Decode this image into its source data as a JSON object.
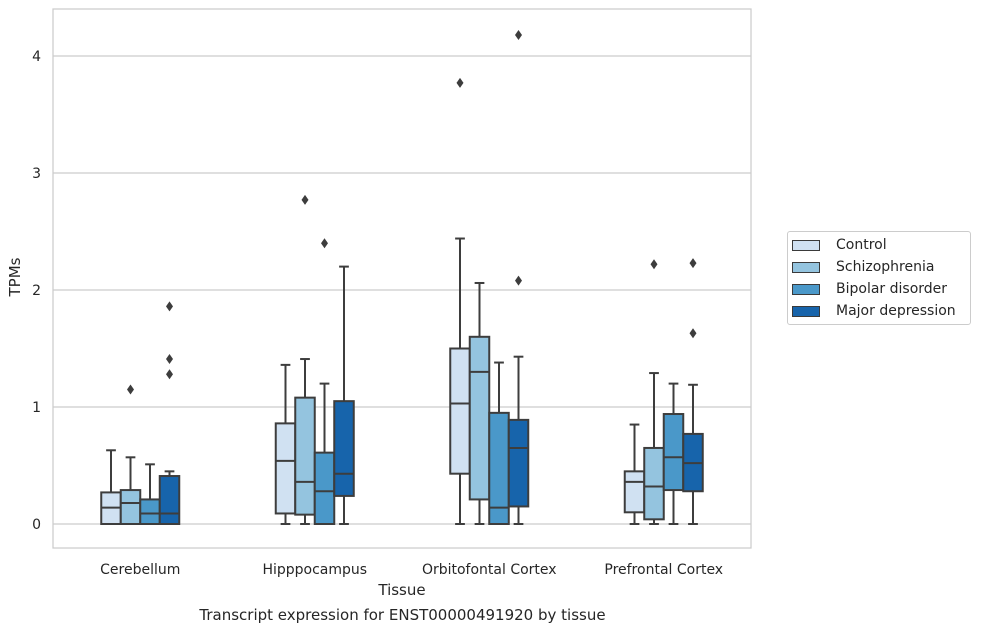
{
  "chart_data": {
    "type": "box",
    "xlabel": "Tissue",
    "ylabel": "TPMs",
    "caption": "Transcript expression for ENST00000491920 by tissue",
    "categories": [
      "Cerebellum",
      "Hipppocampus",
      "Orbitofontal Cortex",
      "Prefrontal Cortex"
    ],
    "yticks": [
      0,
      1,
      2,
      3,
      4
    ],
    "ylim": [
      -0.2,
      4.4
    ],
    "grid": true,
    "legend_position": "right",
    "series": [
      {
        "name": "Control",
        "color": "#d0e1f2",
        "boxes": [
          {
            "whislo": 0,
            "q1": 0,
            "med": 0.14,
            "q3": 0.27,
            "whishi": 0.63,
            "fliers": []
          },
          {
            "whislo": 0,
            "q1": 0.09,
            "med": 0.54,
            "q3": 0.86,
            "whishi": 1.36,
            "fliers": []
          },
          {
            "whislo": 0,
            "q1": 0.43,
            "med": 1.03,
            "q3": 1.5,
            "whishi": 2.44,
            "fliers": [
              3.77
            ]
          },
          {
            "whislo": 0,
            "q1": 0.1,
            "med": 0.36,
            "q3": 0.45,
            "whishi": 0.85,
            "fliers": []
          }
        ]
      },
      {
        "name": "Schizophrenia",
        "color": "#94c4df",
        "boxes": [
          {
            "whislo": 0,
            "q1": 0,
            "med": 0.18,
            "q3": 0.29,
            "whishi": 0.57,
            "fliers": [
              1.15
            ]
          },
          {
            "whislo": 0,
            "q1": 0.08,
            "med": 0.36,
            "q3": 1.08,
            "whishi": 1.41,
            "fliers": [
              2.77
            ]
          },
          {
            "whislo": 0,
            "q1": 0.21,
            "med": 1.3,
            "q3": 1.6,
            "whishi": 2.06,
            "fliers": []
          },
          {
            "whislo": 0,
            "q1": 0.04,
            "med": 0.32,
            "q3": 0.65,
            "whishi": 1.29,
            "fliers": [
              2.22
            ]
          }
        ]
      },
      {
        "name": "Bipolar disorder",
        "color": "#4a98c9",
        "boxes": [
          {
            "whislo": 0,
            "q1": 0,
            "med": 0.09,
            "q3": 0.21,
            "whishi": 0.51,
            "fliers": []
          },
          {
            "whislo": 0,
            "q1": 0,
            "med": 0.28,
            "q3": 0.61,
            "whishi": 1.2,
            "fliers": [
              2.4
            ]
          },
          {
            "whislo": 0,
            "q1": 0,
            "med": 0.14,
            "q3": 0.95,
            "whishi": 1.38,
            "fliers": []
          },
          {
            "whislo": 0,
            "q1": 0.29,
            "med": 0.57,
            "q3": 0.94,
            "whishi": 1.2,
            "fliers": []
          }
        ]
      },
      {
        "name": "Major depression",
        "color": "#1764ab",
        "boxes": [
          {
            "whislo": 0,
            "q1": 0,
            "med": 0.09,
            "q3": 0.41,
            "whishi": 0.45,
            "fliers": [
              1.28,
              1.41,
              1.86
            ]
          },
          {
            "whislo": 0,
            "q1": 0.24,
            "med": 0.43,
            "q3": 1.05,
            "whishi": 2.2,
            "fliers": []
          },
          {
            "whislo": 0,
            "q1": 0.15,
            "med": 0.65,
            "q3": 0.89,
            "whishi": 1.43,
            "fliers": [
              2.08,
              4.18
            ]
          },
          {
            "whislo": 0,
            "q1": 0.28,
            "med": 0.52,
            "q3": 0.77,
            "whishi": 1.19,
            "fliers": [
              1.63,
              2.23
            ]
          }
        ]
      }
    ]
  }
}
